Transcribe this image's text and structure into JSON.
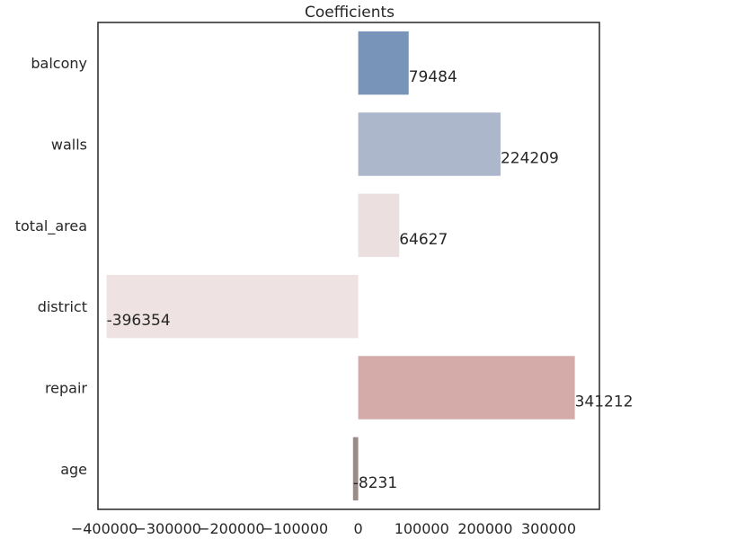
{
  "chart_data": {
    "type": "bar",
    "orientation": "horizontal",
    "title": "Coefficients",
    "xlabel": "",
    "ylabel": "",
    "xlim": [
      -410000,
      380000
    ],
    "grid": false,
    "categories": [
      "balcony",
      "walls",
      "total_area",
      "district",
      "repair",
      "age"
    ],
    "values": [
      79484,
      224209,
      64627,
      -396354,
      341212,
      -8231
    ],
    "data_labels": [
      "79484",
      "224209",
      "64627",
      "-396354",
      "341212",
      "-8231"
    ],
    "colors": [
      "#7894b8",
      "#adb7cb",
      "#ebdfdf",
      "#efe2e2",
      "#d4aba9",
      "#9b8b89"
    ],
    "x_ticks": [
      -400000,
      -300000,
      -200000,
      -100000,
      0,
      100000,
      200000,
      300000
    ],
    "x_tick_labels": [
      "−400000",
      "−300000",
      "−200000",
      "−100000",
      "0",
      "100000",
      "200000",
      "300000"
    ]
  }
}
